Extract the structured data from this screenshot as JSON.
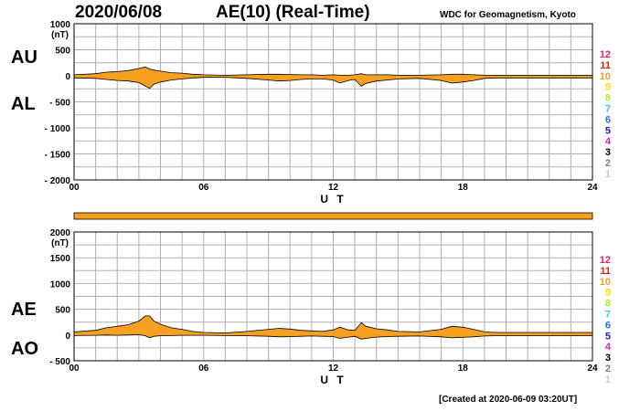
{
  "header": {
    "date": "2020/06/08",
    "title": "AE(10) (Real-Time)",
    "source": "WDC for Geomagnetism, Kyoto",
    "created": "[Created at 2020-06-09 03:20UT]"
  },
  "legend": {
    "items": [
      {
        "label": "12",
        "color": "#e6206e"
      },
      {
        "label": "11",
        "color": "#e02020"
      },
      {
        "label": "10",
        "color": "#f0a020"
      },
      {
        "label": "9",
        "color": "#ffe000"
      },
      {
        "label": "8",
        "color": "#b0f020"
      },
      {
        "label": "7",
        "color": "#30d0e0"
      },
      {
        "label": "6",
        "color": "#2070f0"
      },
      {
        "label": "5",
        "color": "#2020c0"
      },
      {
        "label": "4",
        "color": "#d020d0"
      },
      {
        "label": "3",
        "color": "#000000"
      },
      {
        "label": "2",
        "color": "#808080"
      },
      {
        "label": "1",
        "color": "#c8c8c8"
      }
    ]
  },
  "colors": {
    "fill": "#f5a020",
    "grid": "#b0b0b0",
    "line": "#000000"
  },
  "chart_data": [
    {
      "type": "area",
      "series_labels": [
        "AU",
        "AL"
      ],
      "unit": "(nT)",
      "xlabel": "U T",
      "ylabel": "",
      "xlim": [
        0,
        24
      ],
      "ylim": [
        -2000,
        1000
      ],
      "y_ticks": [
        "1000",
        "500",
        "0",
        "- 500",
        "- 1000",
        "- 1500",
        "- 2000"
      ],
      "x_ticks": [
        "00",
        "06",
        "12",
        "18",
        "24"
      ],
      "x": [
        0,
        1,
        1.5,
        2,
        2.5,
        3,
        3.3,
        3.5,
        3.7,
        4,
        4.5,
        5,
        5.5,
        6,
        7,
        8,
        9,
        9.5,
        10,
        10.5,
        11,
        11.5,
        12,
        12.3,
        12.7,
        13,
        13.3,
        13.5,
        14,
        14.5,
        15,
        16,
        17,
        17.5,
        18,
        18.5,
        19,
        19.5,
        20,
        21,
        22,
        23,
        24
      ],
      "series": [
        {
          "name": "AU",
          "values": [
            20,
            40,
            70,
            80,
            100,
            140,
            170,
            130,
            110,
            90,
            60,
            50,
            30,
            20,
            10,
            20,
            30,
            30,
            25,
            20,
            20,
            10,
            20,
            10,
            10,
            20,
            40,
            20,
            20,
            20,
            10,
            10,
            20,
            30,
            30,
            20,
            10,
            10,
            10,
            10,
            10,
            10,
            10
          ]
        },
        {
          "name": "AL",
          "values": [
            -40,
            -50,
            -70,
            -90,
            -100,
            -130,
            -200,
            -240,
            -160,
            -120,
            -80,
            -60,
            -40,
            -30,
            -30,
            -50,
            -80,
            -100,
            -90,
            -70,
            -60,
            -60,
            -80,
            -140,
            -90,
            -70,
            -200,
            -150,
            -100,
            -80,
            -60,
            -50,
            -90,
            -140,
            -120,
            -90,
            -50,
            -40,
            -40,
            -40,
            -40,
            -40,
            -40
          ]
        }
      ]
    },
    {
      "type": "area",
      "series_labels": [
        "AE",
        "AO"
      ],
      "unit": "(nT)",
      "xlabel": "U T",
      "ylabel": "",
      "xlim": [
        0,
        24
      ],
      "ylim": [
        -500,
        2000
      ],
      "y_ticks": [
        "2000",
        "1500",
        "1000",
        "500",
        "0",
        "- 500"
      ],
      "x_ticks": [
        "00",
        "06",
        "12",
        "18",
        "24"
      ],
      "x": [
        0,
        1,
        1.5,
        2,
        2.5,
        3,
        3.3,
        3.5,
        3.7,
        4,
        4.5,
        5,
        5.5,
        6,
        7,
        8,
        9,
        9.5,
        10,
        10.5,
        11,
        11.5,
        12,
        12.3,
        12.7,
        13,
        13.3,
        13.5,
        14,
        14.5,
        15,
        16,
        17,
        17.5,
        18,
        18.5,
        19,
        19.5,
        20,
        21,
        22,
        23,
        24
      ],
      "series": [
        {
          "name": "AE",
          "values": [
            60,
            90,
            140,
            170,
            200,
            270,
            370,
            370,
            270,
            210,
            140,
            110,
            70,
            50,
            40,
            70,
            110,
            130,
            115,
            90,
            80,
            70,
            100,
            150,
            100,
            90,
            240,
            170,
            120,
            100,
            70,
            60,
            110,
            170,
            150,
            110,
            60,
            50,
            50,
            50,
            50,
            50,
            50
          ]
        },
        {
          "name": "AO",
          "values": [
            -10,
            -5,
            0,
            -5,
            0,
            5,
            -15,
            -55,
            -25,
            -15,
            -10,
            -5,
            -5,
            -5,
            -10,
            -15,
            -25,
            -35,
            -32,
            -25,
            -20,
            -25,
            -30,
            -65,
            -40,
            -25,
            -80,
            -65,
            -40,
            -30,
            -25,
            -20,
            -35,
            -55,
            -45,
            -35,
            -20,
            -15,
            -15,
            -15,
            -15,
            -15,
            -15
          ]
        }
      ]
    }
  ]
}
